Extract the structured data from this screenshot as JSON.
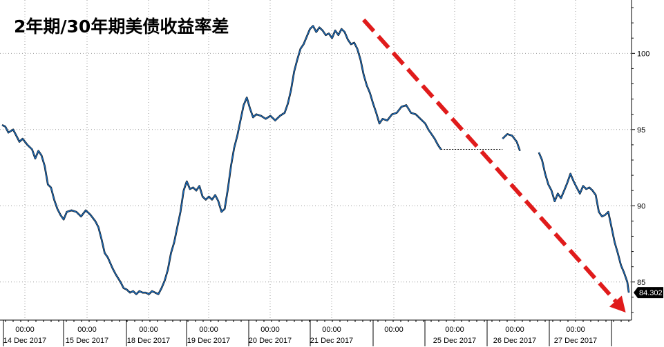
{
  "chart_data": {
    "type": "line",
    "title": "2年期/30年期美债收益率差",
    "xlabel": "",
    "ylabel": "",
    "ylim": [
      82.5,
      103.5
    ],
    "y_ticks": [
      85,
      90,
      95,
      100
    ],
    "y_tick_labels": [
      "85",
      "90",
      "95",
      "100"
    ],
    "x_tick_labels": [
      {
        "time": "00:00",
        "date": "14 Dec 2017"
      },
      {
        "time": "00:00",
        "date": "15 Dec 2017"
      },
      {
        "time": "00:00",
        "date": "18 Dec 2017"
      },
      {
        "time": "00:00",
        "date": "19 Dec 2017"
      },
      {
        "time": "00:00",
        "date": "20 Dec 2017"
      },
      {
        "time": "00:00",
        "date": "21 Dec 2017"
      },
      {
        "time": "00:00",
        "date": ""
      },
      {
        "time": "00:00",
        "date": "25 Dec 2017"
      },
      {
        "time": "00:00",
        "date": "26 Dec 2017"
      },
      {
        "time": "00:00",
        "date": "27 Dec 2017"
      }
    ],
    "grid": true,
    "last_value": "84.302",
    "series": [
      {
        "color": "#1a6fc4",
        "segments": [
          [
            [
              0,
              95.3
            ],
            [
              2,
              95.2
            ],
            [
              4,
              94.8
            ],
            [
              7,
              95.0
            ],
            [
              9,
              94.6
            ],
            [
              11,
              94.2
            ],
            [
              13,
              94.4
            ],
            [
              16,
              94.0
            ],
            [
              19,
              93.7
            ],
            [
              21,
              93.1
            ],
            [
              23,
              93.6
            ],
            [
              25,
              93.3
            ],
            [
              27,
              92.6
            ],
            [
              29,
              91.4
            ],
            [
              31,
              91.2
            ],
            [
              33,
              90.4
            ],
            [
              35,
              89.8
            ],
            [
              37,
              89.4
            ],
            [
              39,
              89.1
            ],
            [
              41,
              89.6
            ],
            [
              44,
              89.7
            ],
            [
              47,
              89.6
            ],
            [
              50,
              89.3
            ],
            [
              53,
              89.7
            ],
            [
              56,
              89.4
            ],
            [
              59,
              89.0
            ],
            [
              61,
              88.6
            ],
            [
              63,
              87.8
            ],
            [
              65,
              86.9
            ],
            [
              67,
              86.6
            ],
            [
              70,
              85.9
            ],
            [
              72,
              85.5
            ],
            [
              75,
              85.0
            ],
            [
              77,
              84.6
            ],
            [
              79,
              84.5
            ],
            [
              81,
              84.3
            ],
            [
              83,
              84.4
            ],
            [
              85,
              84.2
            ],
            [
              87,
              84.4
            ],
            [
              89,
              84.3
            ],
            [
              91,
              84.3
            ],
            [
              93,
              84.2
            ],
            [
              95,
              84.4
            ],
            [
              97,
              84.3
            ],
            [
              99,
              84.2
            ],
            [
              101,
              84.6
            ],
            [
              103,
              85.1
            ],
            [
              105,
              85.8
            ],
            [
              107,
              86.9
            ],
            [
              109,
              87.6
            ],
            [
              111,
              88.6
            ],
            [
              113,
              89.6
            ],
            [
              115,
              91.0
            ],
            [
              117,
              91.6
            ],
            [
              119,
              91.1
            ],
            [
              121,
              91.2
            ],
            [
              123,
              91.0
            ],
            [
              125,
              91.3
            ],
            [
              127,
              90.6
            ],
            [
              129,
              90.4
            ],
            [
              131,
              90.6
            ],
            [
              133,
              90.4
            ],
            [
              135,
              90.7
            ],
            [
              137,
              90.3
            ],
            [
              139,
              89.6
            ],
            [
              141,
              89.8
            ],
            [
              143,
              91.1
            ],
            [
              145,
              92.6
            ],
            [
              147,
              93.8
            ],
            [
              149,
              94.6
            ],
            [
              151,
              95.6
            ],
            [
              153,
              96.6
            ],
            [
              155,
              97.1
            ],
            [
              157,
              96.4
            ],
            [
              159,
              95.8
            ],
            [
              161,
              96.0
            ],
            [
              164,
              95.9
            ],
            [
              167,
              95.7
            ],
            [
              170,
              95.9
            ],
            [
              173,
              95.6
            ],
            [
              176,
              95.9
            ],
            [
              179,
              96.1
            ],
            [
              181,
              96.7
            ],
            [
              183,
              97.6
            ],
            [
              185,
              98.8
            ],
            [
              187,
              99.6
            ],
            [
              189,
              100.3
            ],
            [
              191,
              100.6
            ],
            [
              193,
              101.1
            ],
            [
              195,
              101.6
            ],
            [
              197,
              101.8
            ],
            [
              199,
              101.4
            ],
            [
              201,
              101.7
            ],
            [
              203,
              101.5
            ],
            [
              205,
              101.2
            ],
            [
              207,
              101.3
            ],
            [
              209,
              101.0
            ],
            [
              211,
              101.5
            ],
            [
              213,
              101.2
            ],
            [
              215,
              101.6
            ],
            [
              217,
              101.4
            ],
            [
              219,
              100.9
            ],
            [
              221,
              100.6
            ],
            [
              223,
              100.7
            ],
            [
              225,
              100.3
            ],
            [
              227,
              99.6
            ],
            [
              229,
              98.6
            ],
            [
              231,
              97.9
            ],
            [
              233,
              97.4
            ],
            [
              235,
              96.7
            ],
            [
              237,
              96.1
            ],
            [
              239,
              95.4
            ],
            [
              241,
              95.7
            ],
            [
              244,
              95.6
            ],
            [
              247,
              96.0
            ],
            [
              250,
              96.1
            ],
            [
              253,
              96.5
            ],
            [
              256,
              96.6
            ],
            [
              259,
              96.1
            ],
            [
              262,
              96.0
            ],
            [
              265,
              95.7
            ],
            [
              268,
              95.4
            ],
            [
              270,
              95.0
            ],
            [
              272,
              94.7
            ],
            [
              274,
              94.4
            ],
            [
              276,
              94.0
            ],
            [
              278,
              93.7
            ]
          ],
          [
            [
              278,
              93.7
            ],
            [
              317,
              93.7
            ]
          ],
          [
            [
              317,
              94.4
            ],
            [
              320,
              94.7
            ],
            [
              323,
              94.6
            ],
            [
              326,
              94.2
            ],
            [
              328,
              93.6
            ]
          ],
          [
            [
              340,
              93.5
            ],
            [
              342,
              93.0
            ],
            [
              344,
              92.1
            ],
            [
              346,
              91.4
            ],
            [
              348,
              91.0
            ],
            [
              350,
              90.3
            ],
            [
              352,
              90.8
            ],
            [
              354,
              90.5
            ],
            [
              356,
              91.0
            ],
            [
              358,
              91.5
            ],
            [
              360,
              92.1
            ],
            [
              362,
              91.6
            ],
            [
              364,
              91.2
            ],
            [
              366,
              90.8
            ],
            [
              368,
              91.3
            ],
            [
              370,
              91.1
            ],
            [
              372,
              91.2
            ],
            [
              374,
              91.0
            ],
            [
              376,
              90.7
            ],
            [
              378,
              89.6
            ],
            [
              380,
              89.3
            ],
            [
              382,
              89.4
            ],
            [
              384,
              89.6
            ],
            [
              386,
              88.6
            ],
            [
              388,
              87.6
            ],
            [
              390,
              86.9
            ],
            [
              392,
              86.1
            ],
            [
              394,
              85.6
            ],
            [
              396,
              85.0
            ],
            [
              397,
              84.3
            ]
          ]
        ]
      }
    ],
    "annotations": [
      {
        "type": "arrow",
        "style": "dashed",
        "color": "#e01b1b",
        "direction": "down-right",
        "from": [
          229,
          102.2
        ],
        "to": [
          395,
          83.0
        ]
      }
    ]
  }
}
